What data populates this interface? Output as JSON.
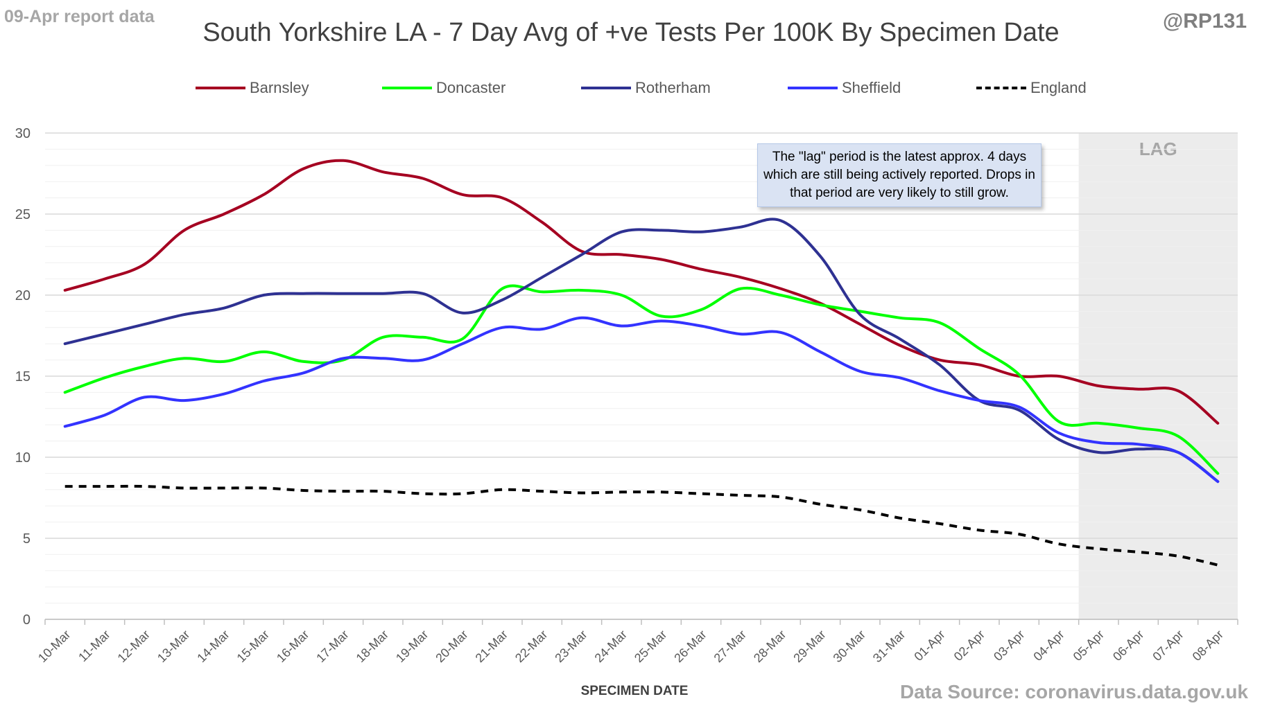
{
  "header": {
    "report_label": "09-Apr report data",
    "handle": "@RP131",
    "title": "South Yorkshire LA - 7 Day Avg of +ve Tests Per 100K By Specimen Date",
    "source": "Data Source: coronavirus.data.gov.uk"
  },
  "annotation": {
    "note": "The \"lag\" period is the latest approx. 4 days which are still being actively reported.  Drops in that period are very likely to still grow.",
    "lag_label": "LAG"
  },
  "colors": {
    "Barnsley": "#a50021",
    "Doncaster": "#00ff00",
    "Rotherham": "#2e3192",
    "Sheffield": "#3333ff",
    "England": "#000000",
    "lag_shade": "#ececec",
    "grid": "#d9d9d9"
  },
  "chart_data": {
    "type": "line",
    "title": "South Yorkshire LA - 7 Day Avg of +ve Tests Per 100K By Specimen Date",
    "xlabel": "SPECIMEN DATE",
    "ylabel": "",
    "ylim": [
      0,
      30
    ],
    "yticks": [
      0,
      5,
      10,
      15,
      20,
      25,
      30
    ],
    "grid": true,
    "legend_position": "top",
    "lag_range": [
      "05-Apr",
      "08-Apr"
    ],
    "categories": [
      "10-Mar",
      "11-Mar",
      "12-Mar",
      "13-Mar",
      "14-Mar",
      "15-Mar",
      "16-Mar",
      "17-Mar",
      "18-Mar",
      "19-Mar",
      "20-Mar",
      "21-Mar",
      "22-Mar",
      "23-Mar",
      "24-Mar",
      "25-Mar",
      "26-Mar",
      "27-Mar",
      "28-Mar",
      "29-Mar",
      "30-Mar",
      "31-Mar",
      "01-Apr",
      "02-Apr",
      "03-Apr",
      "04-Apr",
      "05-Apr",
      "06-Apr",
      "07-Apr",
      "08-Apr"
    ],
    "series": [
      {
        "name": "Barnsley",
        "dashed": false,
        "values": [
          20.3,
          21.0,
          21.9,
          24.0,
          25.0,
          26.2,
          27.8,
          28.3,
          27.6,
          27.2,
          26.2,
          26.0,
          24.5,
          22.7,
          22.5,
          22.2,
          21.6,
          21.1,
          20.4,
          19.5,
          18.2,
          16.9,
          16.0,
          15.7,
          15.0,
          15.0,
          14.4,
          14.2,
          14.1,
          12.1
        ]
      },
      {
        "name": "Doncaster",
        "dashed": false,
        "values": [
          14.0,
          14.9,
          15.6,
          16.1,
          15.9,
          16.5,
          15.9,
          16.0,
          17.4,
          17.4,
          17.3,
          20.4,
          20.2,
          20.3,
          20.0,
          18.7,
          19.1,
          20.4,
          20.0,
          19.4,
          19.0,
          18.6,
          18.3,
          16.7,
          15.1,
          12.2,
          12.1,
          11.8,
          11.3,
          9.0
        ]
      },
      {
        "name": "Rotherham",
        "dashed": false,
        "values": [
          17.0,
          17.6,
          18.2,
          18.8,
          19.2,
          20.0,
          20.1,
          20.1,
          20.1,
          20.1,
          18.9,
          19.7,
          21.1,
          22.5,
          23.9,
          24.0,
          23.9,
          24.2,
          24.6,
          22.4,
          18.8,
          17.3,
          15.7,
          13.5,
          12.9,
          11.1,
          10.3,
          10.5,
          10.3,
          8.5
        ]
      },
      {
        "name": "Sheffield",
        "dashed": false,
        "values": [
          11.9,
          12.6,
          13.7,
          13.5,
          13.9,
          14.7,
          15.2,
          16.1,
          16.1,
          16.0,
          17.0,
          18.0,
          17.9,
          18.6,
          18.1,
          18.4,
          18.1,
          17.6,
          17.7,
          16.5,
          15.3,
          14.9,
          14.1,
          13.5,
          13.1,
          11.5,
          10.9,
          10.8,
          10.3,
          8.5
        ]
      },
      {
        "name": "England",
        "dashed": true,
        "values": [
          8.2,
          8.2,
          8.2,
          8.1,
          8.1,
          8.1,
          7.95,
          7.9,
          7.9,
          7.75,
          7.75,
          8.0,
          7.9,
          7.8,
          7.85,
          7.85,
          7.75,
          7.65,
          7.55,
          7.1,
          6.75,
          6.25,
          5.9,
          5.5,
          5.25,
          4.65,
          4.35,
          4.15,
          3.9,
          3.35
        ]
      }
    ]
  }
}
